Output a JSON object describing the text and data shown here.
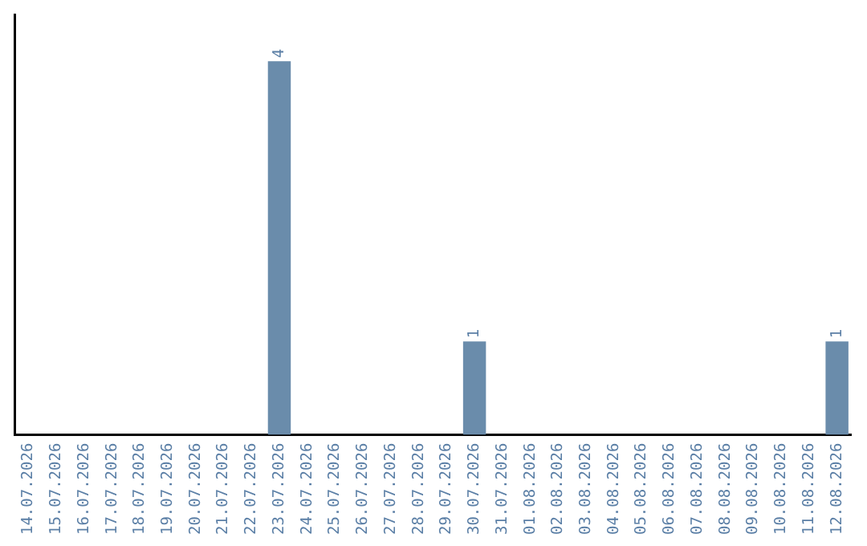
{
  "chart_data": {
    "type": "bar",
    "categories": [
      "14.07.2026",
      "15.07.2026",
      "16.07.2026",
      "17.07.2026",
      "18.07.2026",
      "19.07.2026",
      "20.07.2026",
      "21.07.2026",
      "22.07.2026",
      "23.07.2026",
      "24.07.2026",
      "25.07.2026",
      "26.07.2026",
      "27.07.2026",
      "28.07.2026",
      "29.07.2026",
      "30.07.2026",
      "31.07.2026",
      "01.08.2026",
      "02.08.2026",
      "03.08.2026",
      "04.08.2026",
      "05.08.2026",
      "06.08.2026",
      "07.08.2026",
      "08.08.2026",
      "09.08.2026",
      "10.08.2026",
      "11.08.2026",
      "12.08.2026"
    ],
    "values": [
      0,
      0,
      0,
      0,
      0,
      0,
      0,
      0,
      0,
      4,
      0,
      0,
      0,
      0,
      0,
      0,
      1,
      0,
      0,
      0,
      0,
      0,
      0,
      0,
      0,
      0,
      0,
      0,
      0,
      1
    ],
    "value_labels": [
      null,
      null,
      null,
      null,
      null,
      null,
      null,
      null,
      null,
      "4",
      null,
      null,
      null,
      null,
      null,
      null,
      "1",
      null,
      null,
      null,
      null,
      null,
      null,
      null,
      null,
      null,
      null,
      null,
      null,
      "1"
    ],
    "color": "#6a8cab",
    "grid": false,
    "legend": false,
    "tick_labels": "x"
  }
}
